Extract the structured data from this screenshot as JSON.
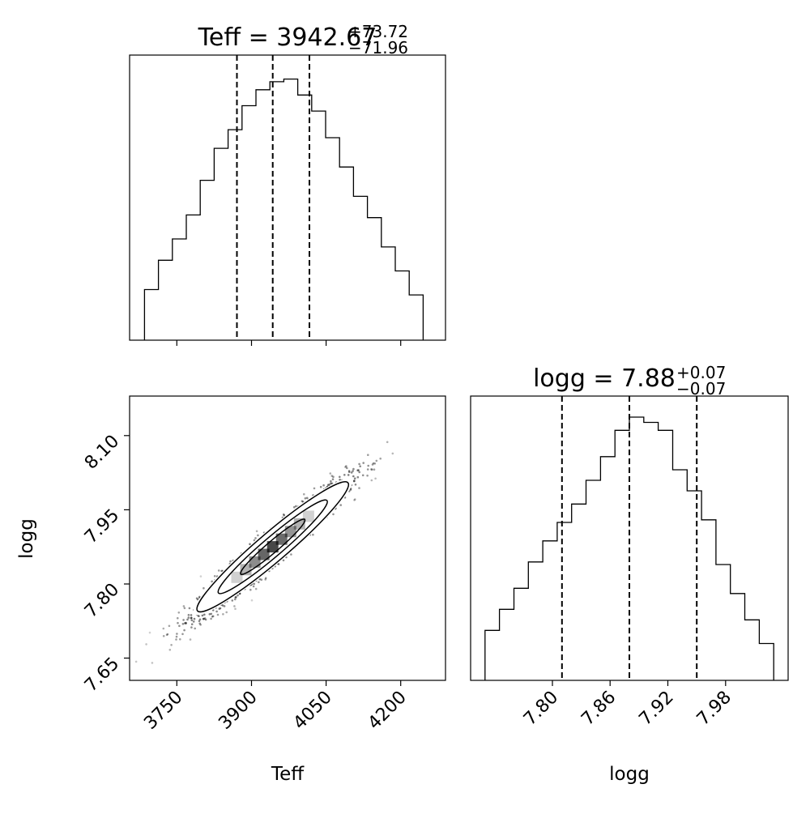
{
  "chart_data": [
    {
      "panel": "teff-histogram",
      "type": "bar",
      "title": {
        "name": "Teff",
        "median": "3942.67",
        "plus": "+73.72",
        "minus": "−71.96"
      },
      "x_range": [
        3655,
        4290
      ],
      "x_ticks": [
        3750,
        3900,
        4050,
        4200
      ],
      "bin_edges": [
        3685,
        3713,
        3741,
        3769,
        3797,
        3825,
        3853,
        3881,
        3909,
        3937,
        3965,
        3993,
        4021,
        4049,
        4077,
        4105,
        4133,
        4161,
        4189,
        4217,
        4245
      ],
      "counts": [
        0.19,
        0.3,
        0.38,
        0.47,
        0.6,
        0.72,
        0.79,
        0.88,
        0.94,
        0.97,
        0.98,
        0.92,
        0.86,
        0.76,
        0.65,
        0.54,
        0.46,
        0.35,
        0.26,
        0.17
      ],
      "count_max": 1.07,
      "quantiles": [
        3870.71,
        3942.67,
        4016.39
      ]
    },
    {
      "panel": "logg-vs-teff",
      "type": "scatter",
      "xlabel": "Teff",
      "ylabel": "logg",
      "x_range": [
        3655,
        4290
      ],
      "y_range": [
        7.605,
        8.18
      ],
      "x_ticks": [
        3750,
        3900,
        4050,
        4200
      ],
      "y_ticks": [
        "7.65",
        "7.80",
        "7.95",
        "8.10"
      ],
      "trend": {
        "x_at_start": 3680,
        "y_at_start": 7.65,
        "x_at_end": 4240,
        "y_at_end": 8.13
      },
      "points": 2200
    },
    {
      "panel": "logg-histogram",
      "type": "bar",
      "title": {
        "name": "logg",
        "median": "7.88",
        "plus": "+0.07",
        "minus": "−0.07"
      },
      "x_range": [
        7.715,
        8.045
      ],
      "x_ticks": [
        "7.80",
        "7.86",
        "7.92",
        "7.98"
      ],
      "xlabel": "logg",
      "bin_edges": [
        7.73,
        7.745,
        7.76,
        7.775,
        7.79,
        7.805,
        7.82,
        7.835,
        7.85,
        7.865,
        7.88,
        7.895,
        7.91,
        7.925,
        7.94,
        7.955,
        7.97,
        7.985,
        8.0,
        8.015,
        8.03
      ],
      "counts": [
        0.19,
        0.27,
        0.35,
        0.45,
        0.53,
        0.6,
        0.67,
        0.76,
        0.85,
        0.95,
        1.0,
        0.98,
        0.95,
        0.8,
        0.72,
        0.61,
        0.44,
        0.33,
        0.23,
        0.14
      ],
      "count_max": 1.08,
      "quantiles": [
        7.81,
        7.88,
        7.95
      ]
    }
  ]
}
